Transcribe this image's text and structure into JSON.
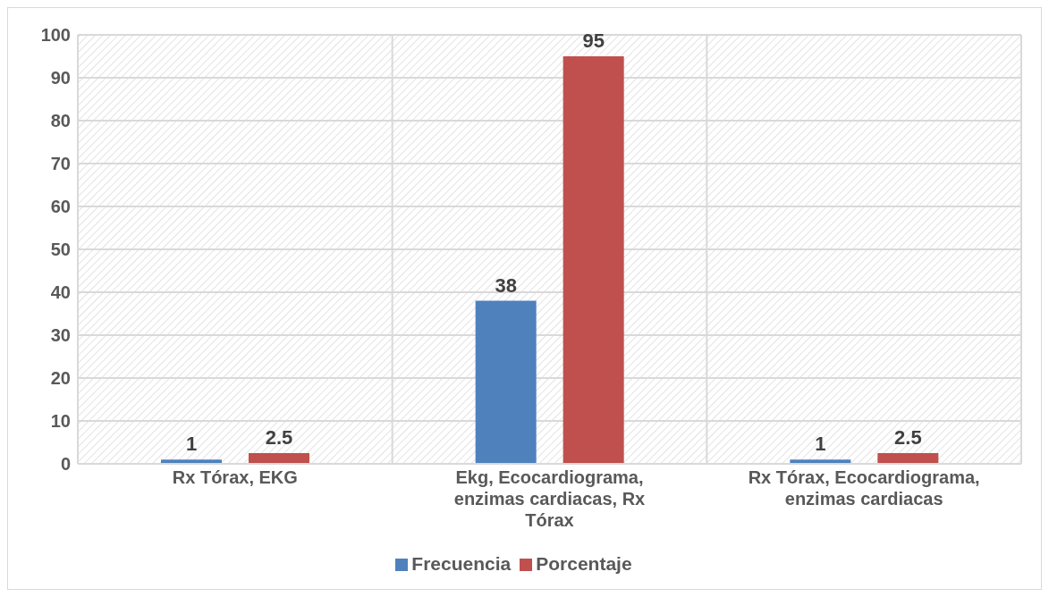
{
  "chart_data": {
    "type": "bar",
    "categories": [
      "Rx Tórax, EKG",
      "Ekg, Ecocardiograma, enzimas cardiacas, Rx Tórax",
      "Rx Tórax, Ecocardiograma, enzimas cardiacas"
    ],
    "series": [
      {
        "name": "Frecuencia",
        "color": "#4f81bd",
        "values": [
          1,
          38,
          1
        ]
      },
      {
        "name": "Porcentaje",
        "color": "#c0504d",
        "values": [
          2.5,
          95,
          2.5
        ]
      }
    ],
    "ylim": [
      0,
      100
    ],
    "yticks": [
      0,
      10,
      20,
      30,
      40,
      50,
      60,
      70,
      80,
      90,
      100
    ],
    "grid": true,
    "legend": "bottom",
    "data_labels": true
  }
}
